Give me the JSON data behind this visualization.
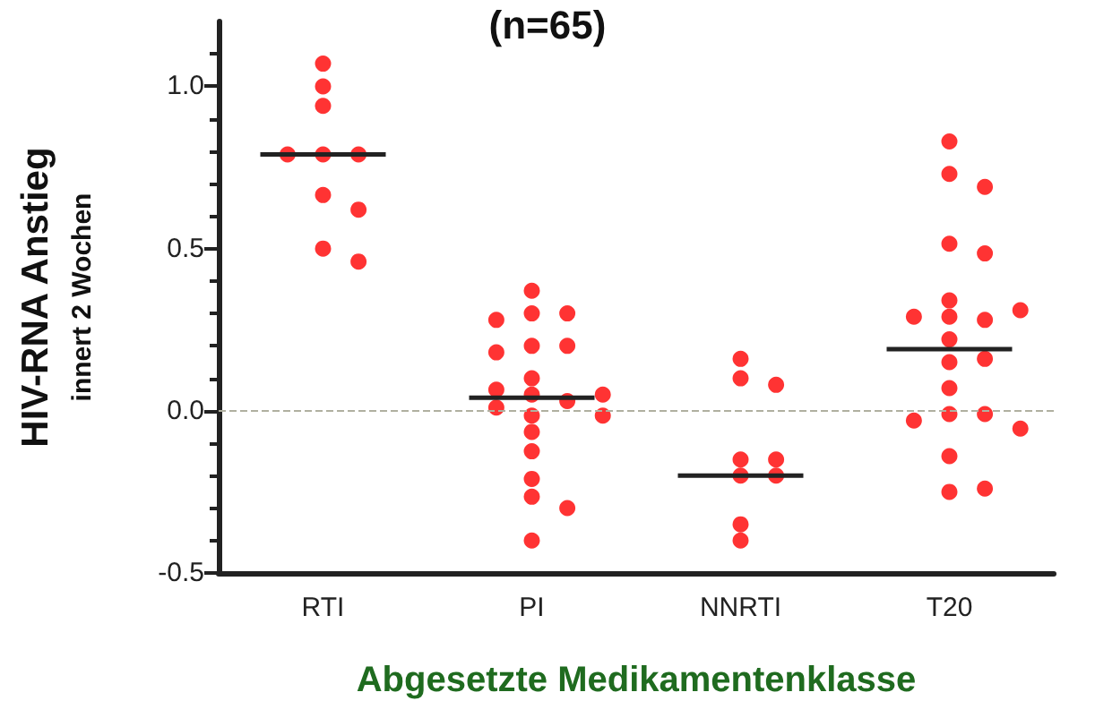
{
  "chart_data": {
    "type": "scatter",
    "title": "(n=65)",
    "xlabel": "Abgesetzte Medikamentenklasse",
    "ylabel": "HIV-RNA Anstieg\ninnert 2 Wochen",
    "categories": [
      "RTI",
      "PI",
      "NNRTI",
      "T20"
    ],
    "ylim": [
      -0.5,
      1.2
    ],
    "yticks": [
      {
        "value": -0.5,
        "label": "-0.5"
      },
      {
        "value": 0,
        "label": "0.0"
      },
      {
        "value": 0.5,
        "label": "0.5"
      },
      {
        "value": 1,
        "label": "1.0"
      }
    ],
    "grid": false,
    "marker": "circle",
    "ref_lines": [
      {
        "axis": "y",
        "value": 0,
        "color": "#b0b0a0",
        "line_style": "dashed"
      }
    ],
    "series": [
      {
        "color": "#ff0000",
        "x": [
          "RTI",
          "RTI",
          "RTI",
          "RTI",
          "RTI",
          "RTI",
          "RTI",
          "RTI",
          "RTI",
          "RTI"
        ],
        "values": [
          1.07,
          1.0,
          0.94,
          0.79,
          0.79,
          0.79,
          0.665,
          0.62,
          0.5,
          0.46
        ]
      },
      {
        "color": "#ff0000",
        "x": [
          "PI",
          "PI",
          "PI",
          "PI",
          "PI",
          "PI",
          "PI",
          "PI",
          "PI",
          "PI",
          "PI",
          "PI",
          "PI",
          "PI",
          "PI",
          "PI",
          "PI",
          "PI",
          "PI",
          "PI",
          "PI"
        ],
        "values": [
          0.37,
          0.3,
          0.3,
          0.28,
          0.2,
          0.2,
          0.18,
          0.1,
          0.05,
          0.03,
          0.065,
          0.05,
          0.01,
          -0.015,
          -0.015,
          -0.065,
          -0.125,
          -0.21,
          -0.265,
          -0.3,
          -0.4
        ]
      },
      {
        "color": "#ff0000",
        "x": [
          "NNRTI",
          "NNRTI",
          "NNRTI",
          "NNRTI",
          "NNRTI",
          "NNRTI",
          "NNRTI",
          "NNRTI",
          "NNRTI"
        ],
        "values": [
          0.16,
          0.1,
          0.08,
          -0.15,
          -0.15,
          -0.2,
          -0.2,
          -0.35,
          -0.4
        ]
      },
      {
        "color": "#ff0000",
        "x": [
          "T20",
          "T20",
          "T20",
          "T20",
          "T20",
          "T20",
          "T20",
          "T20",
          "T20",
          "T20",
          "T20",
          "T20",
          "T20",
          "T20",
          "T20",
          "T20",
          "T20",
          "T20",
          "T20",
          "T20",
          "T20"
        ],
        "values": [
          0.83,
          0.73,
          0.69,
          0.515,
          0.485,
          0.34,
          0.29,
          0.28,
          0.29,
          0.31,
          0.22,
          0.15,
          0.16,
          0.07,
          -0.01,
          -0.01,
          -0.03,
          -0.055,
          -0.14,
          -0.25,
          -0.24
        ]
      },
      {
        "type": "box",
        "color": "#222222",
        "boxes": [
          {
            "low": 0.79,
            "q1": 0.79,
            "median": 0.79,
            "q3": 0.79,
            "high": 0.79
          },
          {
            "low": 0.04,
            "q1": 0.04,
            "median": 0.04,
            "q3": 0.04,
            "high": 0.04
          },
          {
            "low": -0.2,
            "q1": -0.2,
            "median": -0.2,
            "q3": -0.2,
            "high": -0.2
          },
          {
            "low": 0.19,
            "q1": 0.19,
            "median": 0.19,
            "q3": 0.19,
            "high": 0.19
          }
        ]
      }
    ]
  }
}
